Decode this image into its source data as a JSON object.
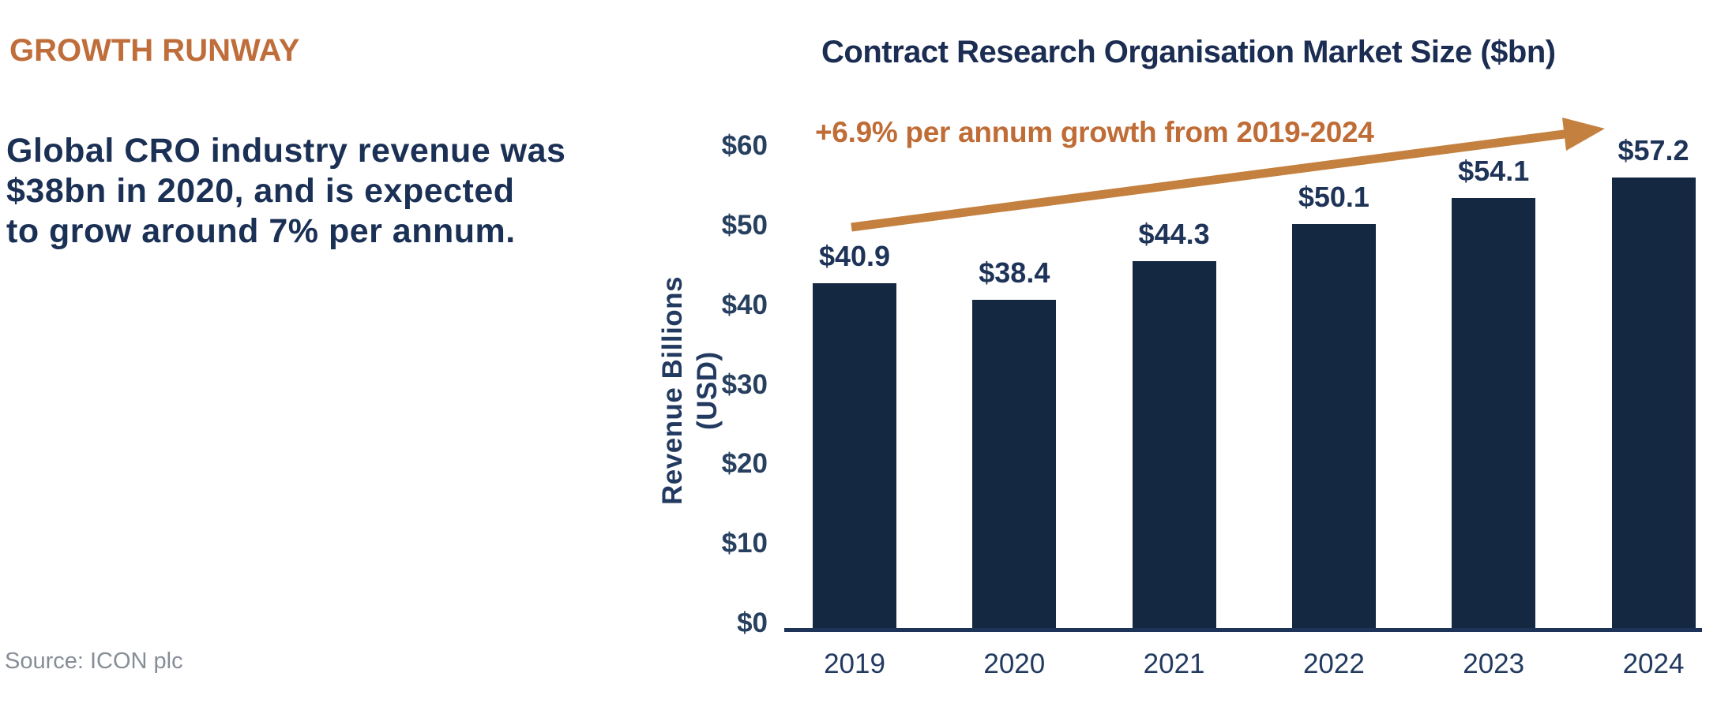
{
  "left_panel": {
    "heading": "GROWTH RUNWAY",
    "paragraph": "Global CRO industry revenue was\n$38bn in 2020, and is expected\nto grow around 7% per annum.",
    "source": "Source: ICON plc"
  },
  "chart_data": {
    "type": "bar",
    "title": "Contract Research Organisation Market Size ($bn)",
    "categories": [
      "2019",
      "2020",
      "2021",
      "2022",
      "2023",
      "2024"
    ],
    "values": [
      40.9,
      38.4,
      44.3,
      50.1,
      54.1,
      57.2
    ],
    "value_labels": [
      "$40.9",
      "$38.4",
      "$44.3",
      "$50.1",
      "$54.1",
      "$57.2"
    ],
    "ylabel": "Revenue Billions (USD)",
    "xlabel": "",
    "ylim": [
      0,
      60
    ],
    "yticks": [
      {
        "value": 0,
        "label": "$0"
      },
      {
        "value": 10,
        "label": "$10"
      },
      {
        "value": 20,
        "label": "$20"
      },
      {
        "value": 30,
        "label": "$30"
      },
      {
        "value": 40,
        "label": "$40"
      },
      {
        "value": 50,
        "label": "$50"
      },
      {
        "value": 60,
        "label": "$60"
      }
    ],
    "grid": false,
    "legend": "none",
    "annotation": {
      "text": "+6.9% per annum growth from 2019-2024",
      "arrow": "orange arrow rising left-to-right from above the 2019 bar to above the 2024 bar"
    }
  },
  "colors": {
    "heading_orange": "#BF6E3B",
    "annotation_orange": "#BF6C36",
    "arrow_orange": "#C4803F",
    "navy_text": "#1B3055",
    "chart_title_navy": "#1B2D52",
    "bar_navy": "#152841",
    "tick_navy": "#27405F",
    "axis_navy": "#1D3357",
    "source_gray": "#878D96",
    "background": "#FFFFFF"
  }
}
